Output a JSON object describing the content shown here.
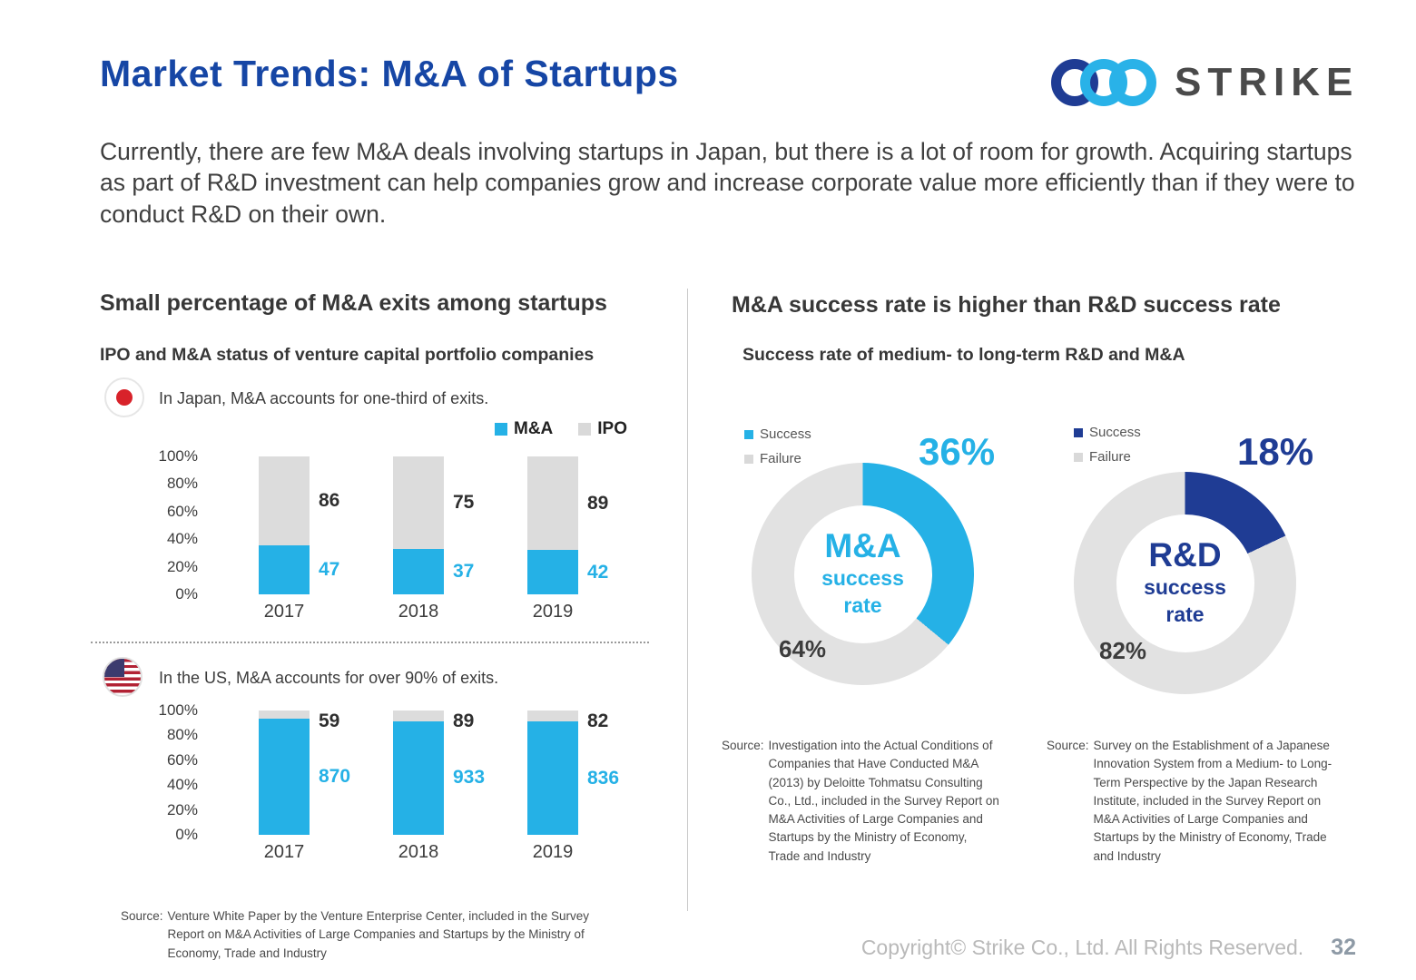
{
  "slide": {
    "title": "Market Trends: M&A of Startups",
    "logo_text": "STRIKE",
    "intro": "Currently, there are few M&A deals involving startups in Japan, but there is a lot of room for growth. Acquiring startups as part of R&D investment can help companies grow and increase corporate value more efficiently than if they were to conduct R&D on their own.",
    "footer": {
      "copyright": "Copyright© Strike Co., Ltd. All Rights Reserved.",
      "page_number": "32"
    }
  },
  "left_panel": {
    "heading": "Small percentage of M&A exits among startups",
    "subheading": "IPO and M&A status of venture capital portfolio companies",
    "legend": {
      "ma": "M&A",
      "ipo": "IPO"
    },
    "japan_note": "In Japan, M&A accounts for one-third of exits.",
    "us_note": "In the US, M&A accounts for over 90% of exits.",
    "source_label": "Source:",
    "source_text": "Venture White Paper by the Venture Enterprise Center, included in the Survey Report on M&A Activities of Large Companies and Startups by the Ministry of Economy, Trade and Industry"
  },
  "right_panel": {
    "heading": "M&A success rate is higher than R&D success rate",
    "subheading": "Success rate of medium- to long-term R&D and M&A",
    "legend_success": "Success",
    "legend_failure": "Failure",
    "ma_donut": {
      "success_label": "36%",
      "failure_label": "64%",
      "center_line1": "M&A",
      "center_line2": "success",
      "center_line3": "rate"
    },
    "rd_donut": {
      "success_label": "18%",
      "failure_label": "82%",
      "center_line1": "R&D",
      "center_line2": "success",
      "center_line3": "rate"
    },
    "ma_source_label": "Source:",
    "ma_source_text": "Investigation into the Actual Conditions of Companies that Have Conducted M&A (2013) by Deloitte Tohmatsu Consulting Co., Ltd., included in the Survey Report on M&A Activities of Large Companies and Startups by the Ministry of Economy, Trade and Industry",
    "rd_source_label": "Source:",
    "rd_source_text": "Survey on the Establishment of a Japanese Innovation System from a Medium- to Long-Term Perspective by the Japan Research Institute, included in the Survey Report on M&A Activities of Large Companies and Startups by the Ministry of Economy, Trade and Industry"
  },
  "colors": {
    "accent_blue": "#1646a5",
    "cyan": "#25b1e6",
    "navy": "#1f3c94",
    "bar_gray": "#dcdcdc",
    "donut_gray": "#e2e2e2"
  },
  "chart_data": [
    {
      "type": "bar",
      "stacked": true,
      "percent_normalized": true,
      "title": "In Japan, M&A accounts for one-third of exits.",
      "categories": [
        "2017",
        "2018",
        "2019"
      ],
      "series": [
        {
          "name": "M&A",
          "color": "#25b1e6",
          "values": [
            47,
            37,
            42
          ]
        },
        {
          "name": "IPO",
          "color": "#dcdcdc",
          "values": [
            86,
            75,
            89
          ]
        }
      ],
      "y_ticks": [
        "100%",
        "80%",
        "60%",
        "40%",
        "20%",
        "0%"
      ],
      "ylim": [
        0,
        100
      ],
      "legend_position": "top-right"
    },
    {
      "type": "bar",
      "stacked": true,
      "percent_normalized": true,
      "title": "In the US, M&A accounts for over 90% of exits.",
      "categories": [
        "2017",
        "2018",
        "2019"
      ],
      "series": [
        {
          "name": "M&A",
          "color": "#25b1e6",
          "values": [
            870,
            933,
            836
          ]
        },
        {
          "name": "IPO",
          "color": "#dcdcdc",
          "values": [
            59,
            89,
            82
          ]
        }
      ],
      "y_ticks": [
        "100%",
        "80%",
        "60%",
        "40%",
        "20%",
        "0%"
      ],
      "ylim": [
        0,
        100
      ],
      "legend_position": "none"
    },
    {
      "type": "donut",
      "title": "M&A success rate",
      "slices": [
        {
          "label": "Success",
          "value": 36,
          "color": "#25b1e6"
        },
        {
          "label": "Failure",
          "value": 64,
          "color": "#e2e2e2"
        }
      ]
    },
    {
      "type": "donut",
      "title": "R&D success rate",
      "slices": [
        {
          "label": "Success",
          "value": 18,
          "color": "#1f3c94"
        },
        {
          "label": "Failure",
          "value": 82,
          "color": "#e2e2e2"
        }
      ]
    }
  ]
}
